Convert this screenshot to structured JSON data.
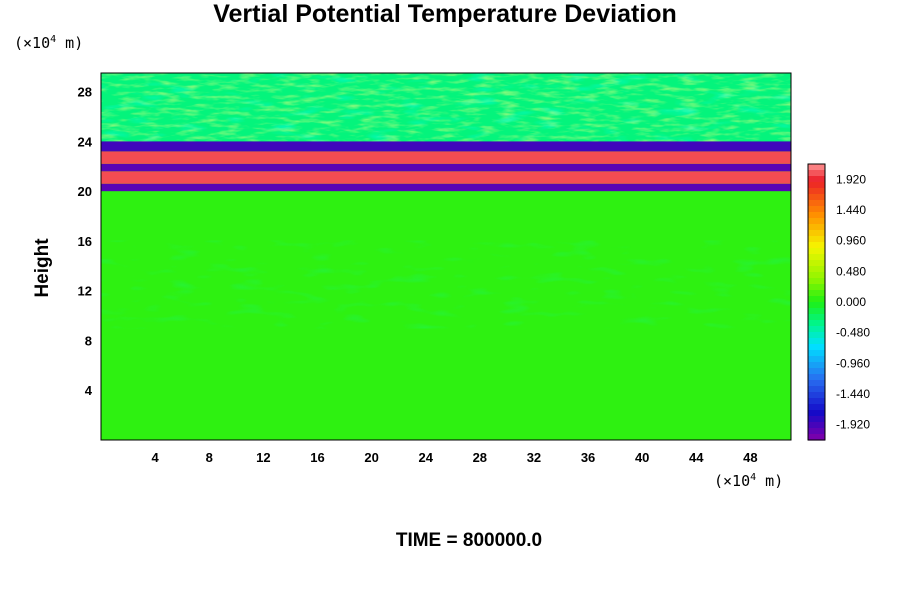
{
  "chart_data": {
    "type": "heatmap",
    "title": "Vertial Potential Temperature Deviation",
    "xlabel": "",
    "ylabel": "Height",
    "x_unit": {
      "prefix": "(×10",
      "exp": "4",
      "suffix": " m)"
    },
    "y_unit": {
      "prefix": "(×10",
      "exp": "4",
      "suffix": " m)"
    },
    "x_ticks": [
      4,
      8,
      12,
      16,
      20,
      24,
      28,
      32,
      36,
      40,
      44,
      48
    ],
    "y_ticks": [
      4,
      8,
      12,
      16,
      20,
      24,
      28
    ],
    "xlim": [
      0,
      51
    ],
    "ylim": [
      0,
      29.5
    ],
    "colorbar": {
      "range": [
        -2.16,
        2.16
      ],
      "labels": [
        "1.920",
        "1.440",
        "0.960",
        "0.480",
        "0.000",
        "-0.480",
        "-0.960",
        "-1.440",
        "-1.920"
      ],
      "label_values": [
        1.92,
        1.44,
        0.96,
        0.48,
        0.0,
        -0.48,
        -0.96,
        -1.44,
        -1.92
      ]
    },
    "field_description": [
      {
        "y": [
          20,
          20.6
        ],
        "value": -2.0
      },
      {
        "y": [
          20.6,
          21.6
        ],
        "value": 2.0
      },
      {
        "y": [
          21.6,
          22.2
        ],
        "value": -2.0
      },
      {
        "y": [
          22.2,
          23.2
        ],
        "value": 2.0
      },
      {
        "y": [
          23.2,
          24
        ],
        "value": -1.9
      },
      {
        "y": [
          0,
          19.5
        ],
        "value": 0.05
      }
    ],
    "footer": "TIME = 800000.0"
  }
}
